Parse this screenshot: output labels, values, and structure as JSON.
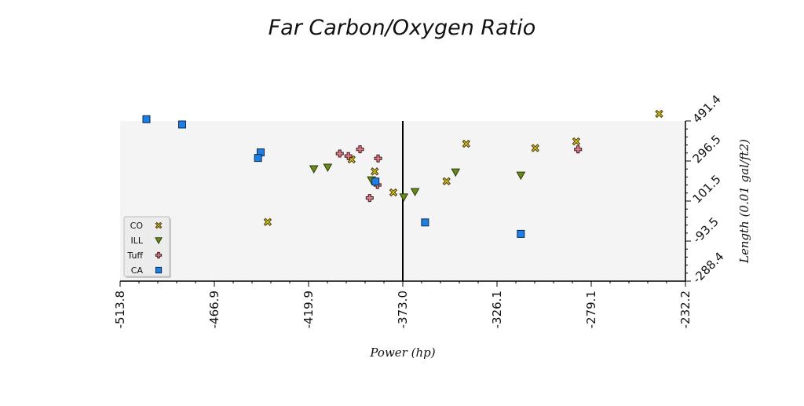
{
  "chart_data": {
    "type": "scatter",
    "title": "Far Carbon/Oxygen Ratio",
    "xlabel": "Power (hp)",
    "ylabel": "Length (0.01 gal/ft2)",
    "xlim": [
      -513.8,
      -232.2
    ],
    "ylim": [
      -288.4,
      491.4
    ],
    "x_ticks": [
      "-513.8",
      "-466.9",
      "-419.9",
      "-373.0",
      "-326.1",
      "-279.1",
      "-232.2"
    ],
    "y_ticks": [
      "-288.4",
      "-93.5",
      "101.5",
      "296.5",
      "491.4"
    ],
    "x_reference_line": -373.0,
    "grid": false,
    "legend_position": "bottom-left",
    "background": "#f4f4f4",
    "series": [
      {
        "name": "CO",
        "marker": "x-filled",
        "color": "#d4c41a",
        "points": [
          [
            -245.3,
            526.0
          ],
          [
            -398.5,
            303.8
          ],
          [
            -387.0,
            245.3
          ],
          [
            -377.7,
            143.4
          ],
          [
            -351.2,
            197.8
          ],
          [
            -307.0,
            359.3
          ],
          [
            -341.4,
            380.2
          ],
          [
            -286.6,
            391.8
          ],
          [
            -440.3,
            -0.4
          ]
        ]
      },
      {
        "name": "ILL",
        "marker": "triangle-down",
        "color": "#6a8a1a",
        "points": [
          [
            -417.3,
            258.1
          ],
          [
            -410.4,
            265.9
          ],
          [
            -388.6,
            204.4
          ],
          [
            -372.5,
            121.2
          ],
          [
            -366.9,
            147.4
          ],
          [
            -346.7,
            242.3
          ],
          [
            -314.2,
            227.0
          ]
        ]
      },
      {
        "name": "Tuff",
        "marker": "plus",
        "color": "#e07a8a",
        "points": [
          [
            -404.4,
            332.6
          ],
          [
            -400.1,
            320.5
          ],
          [
            -394.3,
            353.4
          ],
          [
            -385.3,
            309.0
          ],
          [
            -385.6,
            179.8
          ],
          [
            -389.5,
            116.4
          ],
          [
            -285.7,
            352.8
          ]
        ]
      },
      {
        "name": "CA",
        "marker": "square",
        "color": "#1e7fe0",
        "points": [
          [
            -500.7,
            499.7
          ],
          [
            -482.9,
            474.2
          ],
          [
            -443.8,
            338.2
          ],
          [
            -445.1,
            311.2
          ],
          [
            -386.6,
            196.5
          ],
          [
            -361.9,
            -2.7
          ],
          [
            -314.2,
            -58.6
          ]
        ]
      }
    ]
  }
}
